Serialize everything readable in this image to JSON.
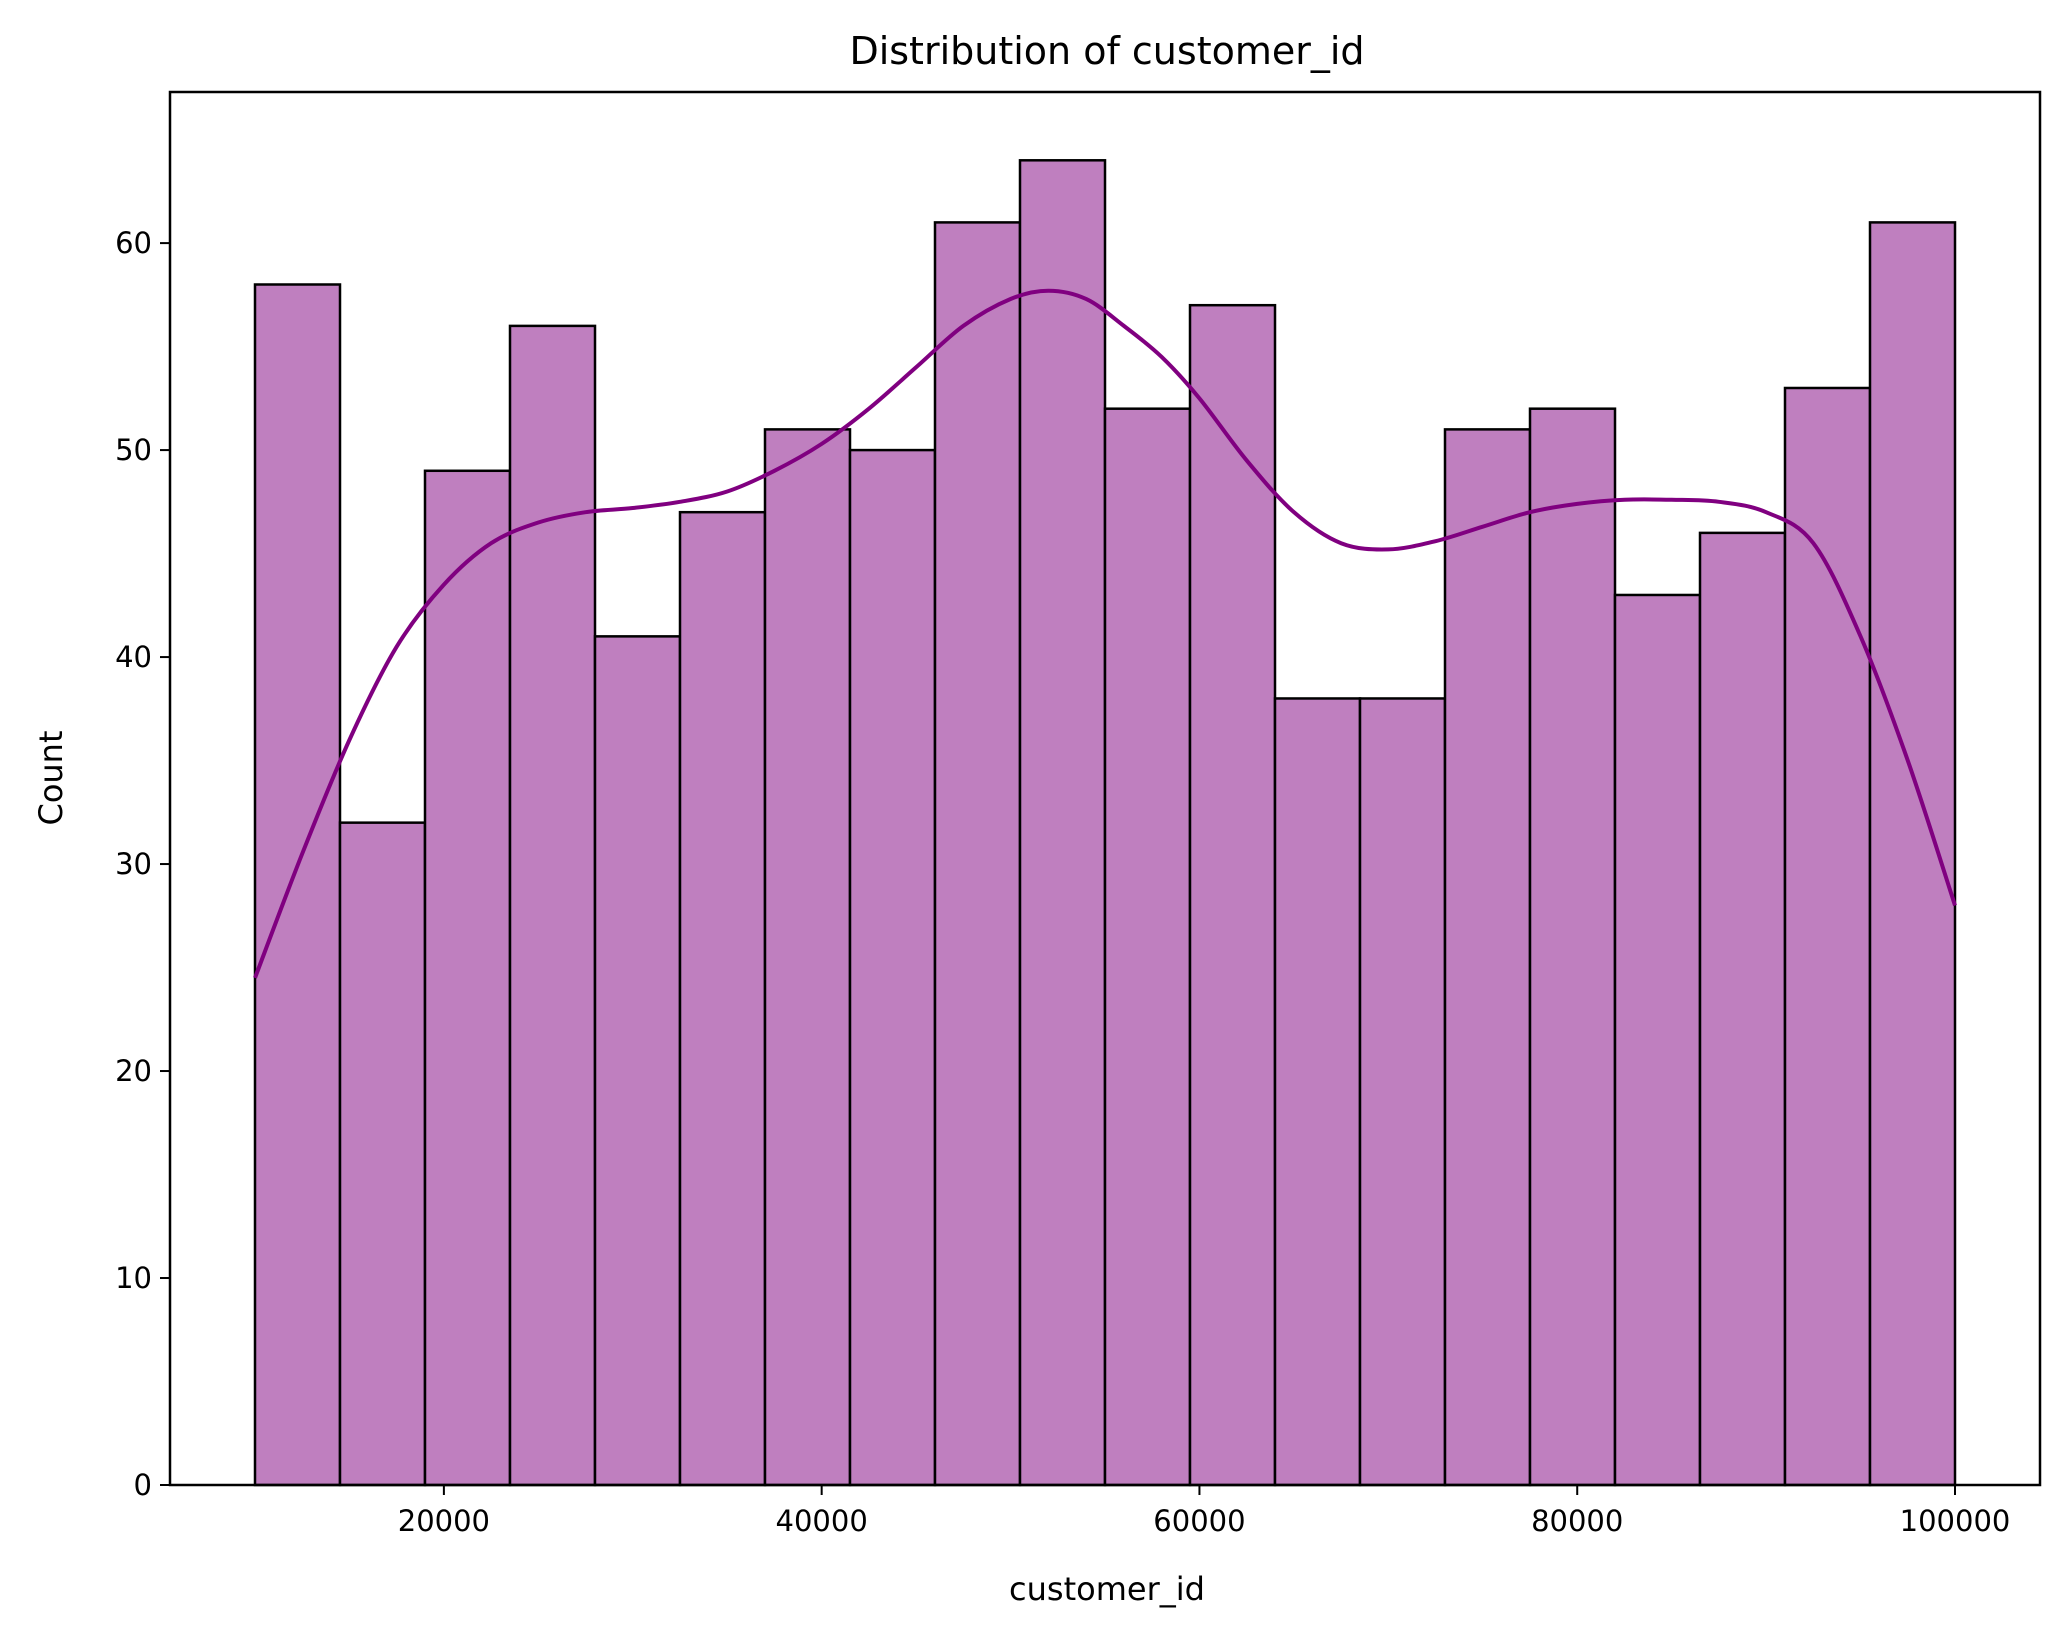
{
  "chart_data": {
    "type": "bar",
    "title": "Distribution of customer_id",
    "xlabel": "customer_id",
    "ylabel": "Count",
    "xlim": [
      5500,
      104500
    ],
    "ylim": [
      0,
      67.3
    ],
    "xticks": [
      20000,
      40000,
      60000,
      80000,
      100000
    ],
    "xtick_labels": [
      "20000",
      "40000",
      "60000",
      "80000",
      "100000"
    ],
    "yticks": [
      0,
      10,
      20,
      30,
      40,
      50,
      60
    ],
    "ytick_labels": [
      "0",
      "10",
      "20",
      "30",
      "40",
      "50",
      "60"
    ],
    "grid": false,
    "bins": {
      "start": 10000,
      "end": 100000,
      "counts": [
        58,
        32,
        49,
        56,
        41,
        47,
        51,
        50,
        61,
        64,
        52,
        57,
        38,
        38,
        51,
        52,
        43,
        46,
        53,
        61
      ]
    },
    "kde": {
      "x": [
        10000,
        12500,
        15000,
        17500,
        20000,
        22500,
        25000,
        27500,
        30000,
        32500,
        35000,
        37500,
        40000,
        42500,
        45000,
        47500,
        50000,
        52000,
        54000,
        56000,
        58000,
        60000,
        62500,
        65000,
        67500,
        70000,
        72500,
        75000,
        77500,
        80000,
        82500,
        85000,
        87500,
        90000,
        92500,
        95000,
        97500,
        100000
      ],
      "y": [
        24.5,
        30.5,
        36,
        40.5,
        43.5,
        45.5,
        46.5,
        47,
        47.2,
        47.5,
        48,
        49,
        50.3,
        52,
        54,
        56,
        57.3,
        57.7,
        57.3,
        56,
        54.5,
        52.5,
        49.5,
        47,
        45.5,
        45.2,
        45.6,
        46.3,
        47,
        47.4,
        47.6,
        47.6,
        47.5,
        47,
        45.5,
        41,
        35,
        28
      ]
    },
    "colors": {
      "bar_fill": "#bf7fbf",
      "bar_edge": "#000000",
      "kde_line": "#800080"
    }
  }
}
